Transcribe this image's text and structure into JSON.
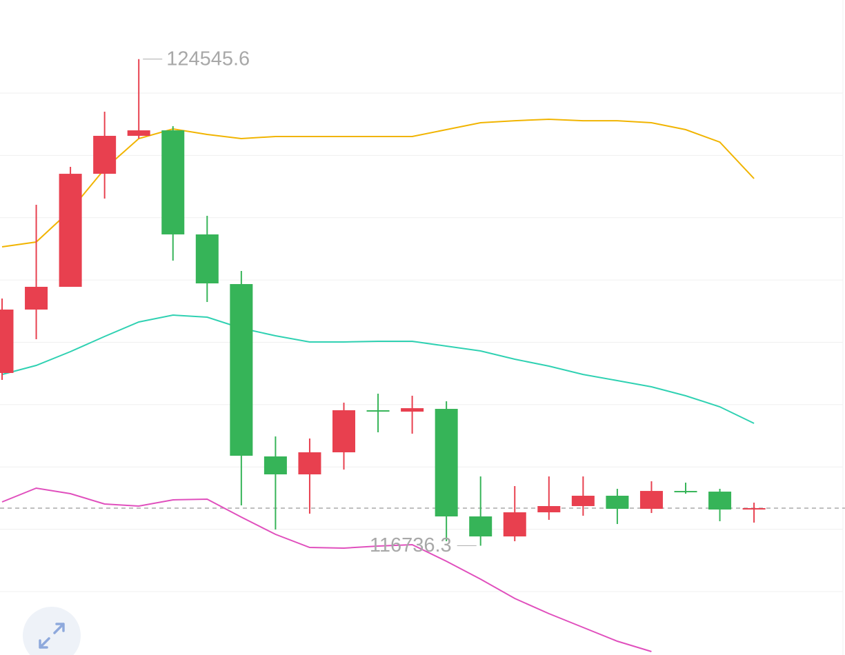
{
  "chart_data": {
    "type": "candlestick",
    "open": [
      119508,
      120526,
      120891,
      122705,
      123314,
      123402,
      121732,
      120935,
      118169,
      117881,
      118235,
      118910,
      118888,
      118932,
      117206,
      116885,
      117272,
      117372,
      117538,
      117328,
      117615,
      117604,
      117317
    ],
    "high": [
      120703,
      122207,
      122816,
      123701,
      124545.6,
      123469,
      122030,
      121145,
      118490,
      118456,
      119032,
      119176,
      119143,
      119054,
      117848,
      117693,
      117848,
      117848,
      117649,
      117770,
      117748,
      117649,
      117427
    ],
    "low": [
      119397,
      120050,
      120891,
      122307,
      123270,
      121311,
      120647,
      117383,
      116996,
      117250,
      117958,
      118556,
      118534,
      116808,
      116736.3,
      116808,
      117151,
      117217,
      117084,
      117261,
      117571,
      117129,
      117107
    ],
    "close": [
      120526,
      120891,
      122705,
      123314,
      123402,
      121732,
      120946,
      118180,
      117881,
      118235,
      118910,
      118888,
      118943,
      117206,
      116885,
      117272,
      117372,
      117538,
      117328,
      117615,
      117594,
      117317,
      117339
    ],
    "up_color": "#e8404f",
    "down_color": "#36b458",
    "lines": [
      {
        "color": "#f1b400",
        "values": [
          121533,
          121610,
          122119,
          122783,
          123270,
          123425,
          123336,
          123270,
          123303,
          123303,
          123303,
          123303,
          123303,
          123414,
          123524,
          123557,
          123580,
          123557,
          123557,
          123524,
          123414,
          123214,
          122628
        ]
      },
      {
        "color": "#2fd1b2",
        "values": [
          119485,
          119629,
          119851,
          120094,
          120326,
          120437,
          120404,
          120227,
          120105,
          120006,
          120006,
          120017,
          120017,
          119939,
          119862,
          119729,
          119618,
          119485,
          119386,
          119286,
          119142,
          118965,
          118700
        ]
      },
      {
        "color": "#e04fbd",
        "values": [
          117438,
          117660,
          117571,
          117405,
          117372,
          117472,
          117483,
          117195,
          116918,
          116708,
          116697,
          116730,
          116752,
          116487,
          116199,
          115889,
          115646,
          115425,
          115203,
          115037,
          null,
          null,
          null
        ]
      }
    ],
    "ylim": [
      114982,
      125494
    ],
    "grid_lines": [
      116000,
      117000,
      118000,
      119000,
      120000,
      121000,
      122000,
      123000,
      124000
    ],
    "last_price": 117339
  }
}
